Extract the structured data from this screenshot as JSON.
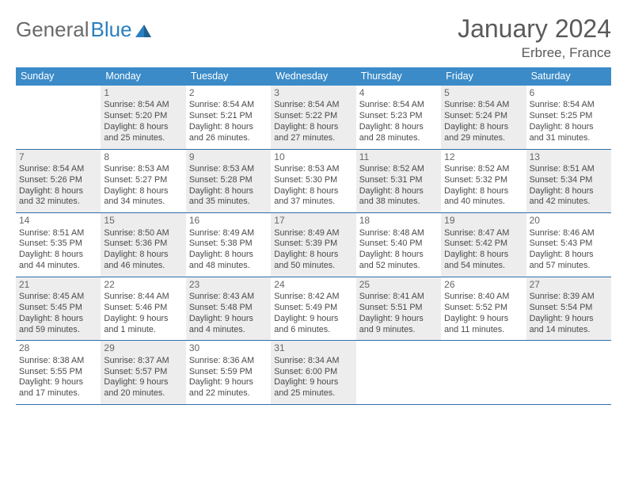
{
  "brand": {
    "part1": "General",
    "part2": "Blue"
  },
  "title": "January 2024",
  "location": "Erbree, France",
  "colors": {
    "header_bg": "#3b8bc8",
    "header_text": "#ffffff",
    "rule": "#2f6fa8",
    "alt_bg": "#ededed",
    "text": "#4a4a4a",
    "logo_gray": "#6a6a6a",
    "logo_blue": "#2a7fbf"
  },
  "day_names": [
    "Sunday",
    "Monday",
    "Tuesday",
    "Wednesday",
    "Thursday",
    "Friday",
    "Saturday"
  ],
  "weeks": [
    [
      {
        "n": "",
        "alt": false,
        "lines": []
      },
      {
        "n": "1",
        "alt": true,
        "lines": [
          "Sunrise: 8:54 AM",
          "Sunset: 5:20 PM",
          "Daylight: 8 hours",
          "and 25 minutes."
        ]
      },
      {
        "n": "2",
        "alt": false,
        "lines": [
          "Sunrise: 8:54 AM",
          "Sunset: 5:21 PM",
          "Daylight: 8 hours",
          "and 26 minutes."
        ]
      },
      {
        "n": "3",
        "alt": true,
        "lines": [
          "Sunrise: 8:54 AM",
          "Sunset: 5:22 PM",
          "Daylight: 8 hours",
          "and 27 minutes."
        ]
      },
      {
        "n": "4",
        "alt": false,
        "lines": [
          "Sunrise: 8:54 AM",
          "Sunset: 5:23 PM",
          "Daylight: 8 hours",
          "and 28 minutes."
        ]
      },
      {
        "n": "5",
        "alt": true,
        "lines": [
          "Sunrise: 8:54 AM",
          "Sunset: 5:24 PM",
          "Daylight: 8 hours",
          "and 29 minutes."
        ]
      },
      {
        "n": "6",
        "alt": false,
        "lines": [
          "Sunrise: 8:54 AM",
          "Sunset: 5:25 PM",
          "Daylight: 8 hours",
          "and 31 minutes."
        ]
      }
    ],
    [
      {
        "n": "7",
        "alt": true,
        "lines": [
          "Sunrise: 8:54 AM",
          "Sunset: 5:26 PM",
          "Daylight: 8 hours",
          "and 32 minutes."
        ]
      },
      {
        "n": "8",
        "alt": false,
        "lines": [
          "Sunrise: 8:53 AM",
          "Sunset: 5:27 PM",
          "Daylight: 8 hours",
          "and 34 minutes."
        ]
      },
      {
        "n": "9",
        "alt": true,
        "lines": [
          "Sunrise: 8:53 AM",
          "Sunset: 5:28 PM",
          "Daylight: 8 hours",
          "and 35 minutes."
        ]
      },
      {
        "n": "10",
        "alt": false,
        "lines": [
          "Sunrise: 8:53 AM",
          "Sunset: 5:30 PM",
          "Daylight: 8 hours",
          "and 37 minutes."
        ]
      },
      {
        "n": "11",
        "alt": true,
        "lines": [
          "Sunrise: 8:52 AM",
          "Sunset: 5:31 PM",
          "Daylight: 8 hours",
          "and 38 minutes."
        ]
      },
      {
        "n": "12",
        "alt": false,
        "lines": [
          "Sunrise: 8:52 AM",
          "Sunset: 5:32 PM",
          "Daylight: 8 hours",
          "and 40 minutes."
        ]
      },
      {
        "n": "13",
        "alt": true,
        "lines": [
          "Sunrise: 8:51 AM",
          "Sunset: 5:34 PM",
          "Daylight: 8 hours",
          "and 42 minutes."
        ]
      }
    ],
    [
      {
        "n": "14",
        "alt": false,
        "lines": [
          "Sunrise: 8:51 AM",
          "Sunset: 5:35 PM",
          "Daylight: 8 hours",
          "and 44 minutes."
        ]
      },
      {
        "n": "15",
        "alt": true,
        "lines": [
          "Sunrise: 8:50 AM",
          "Sunset: 5:36 PM",
          "Daylight: 8 hours",
          "and 46 minutes."
        ]
      },
      {
        "n": "16",
        "alt": false,
        "lines": [
          "Sunrise: 8:49 AM",
          "Sunset: 5:38 PM",
          "Daylight: 8 hours",
          "and 48 minutes."
        ]
      },
      {
        "n": "17",
        "alt": true,
        "lines": [
          "Sunrise: 8:49 AM",
          "Sunset: 5:39 PM",
          "Daylight: 8 hours",
          "and 50 minutes."
        ]
      },
      {
        "n": "18",
        "alt": false,
        "lines": [
          "Sunrise: 8:48 AM",
          "Sunset: 5:40 PM",
          "Daylight: 8 hours",
          "and 52 minutes."
        ]
      },
      {
        "n": "19",
        "alt": true,
        "lines": [
          "Sunrise: 8:47 AM",
          "Sunset: 5:42 PM",
          "Daylight: 8 hours",
          "and 54 minutes."
        ]
      },
      {
        "n": "20",
        "alt": false,
        "lines": [
          "Sunrise: 8:46 AM",
          "Sunset: 5:43 PM",
          "Daylight: 8 hours",
          "and 57 minutes."
        ]
      }
    ],
    [
      {
        "n": "21",
        "alt": true,
        "lines": [
          "Sunrise: 8:45 AM",
          "Sunset: 5:45 PM",
          "Daylight: 8 hours",
          "and 59 minutes."
        ]
      },
      {
        "n": "22",
        "alt": false,
        "lines": [
          "Sunrise: 8:44 AM",
          "Sunset: 5:46 PM",
          "Daylight: 9 hours",
          "and 1 minute."
        ]
      },
      {
        "n": "23",
        "alt": true,
        "lines": [
          "Sunrise: 8:43 AM",
          "Sunset: 5:48 PM",
          "Daylight: 9 hours",
          "and 4 minutes."
        ]
      },
      {
        "n": "24",
        "alt": false,
        "lines": [
          "Sunrise: 8:42 AM",
          "Sunset: 5:49 PM",
          "Daylight: 9 hours",
          "and 6 minutes."
        ]
      },
      {
        "n": "25",
        "alt": true,
        "lines": [
          "Sunrise: 8:41 AM",
          "Sunset: 5:51 PM",
          "Daylight: 9 hours",
          "and 9 minutes."
        ]
      },
      {
        "n": "26",
        "alt": false,
        "lines": [
          "Sunrise: 8:40 AM",
          "Sunset: 5:52 PM",
          "Daylight: 9 hours",
          "and 11 minutes."
        ]
      },
      {
        "n": "27",
        "alt": true,
        "lines": [
          "Sunrise: 8:39 AM",
          "Sunset: 5:54 PM",
          "Daylight: 9 hours",
          "and 14 minutes."
        ]
      }
    ],
    [
      {
        "n": "28",
        "alt": false,
        "lines": [
          "Sunrise: 8:38 AM",
          "Sunset: 5:55 PM",
          "Daylight: 9 hours",
          "and 17 minutes."
        ]
      },
      {
        "n": "29",
        "alt": true,
        "lines": [
          "Sunrise: 8:37 AM",
          "Sunset: 5:57 PM",
          "Daylight: 9 hours",
          "and 20 minutes."
        ]
      },
      {
        "n": "30",
        "alt": false,
        "lines": [
          "Sunrise: 8:36 AM",
          "Sunset: 5:59 PM",
          "Daylight: 9 hours",
          "and 22 minutes."
        ]
      },
      {
        "n": "31",
        "alt": true,
        "lines": [
          "Sunrise: 8:34 AM",
          "Sunset: 6:00 PM",
          "Daylight: 9 hours",
          "and 25 minutes."
        ]
      },
      {
        "n": "",
        "alt": false,
        "lines": []
      },
      {
        "n": "",
        "alt": false,
        "lines": []
      },
      {
        "n": "",
        "alt": false,
        "lines": []
      }
    ]
  ]
}
